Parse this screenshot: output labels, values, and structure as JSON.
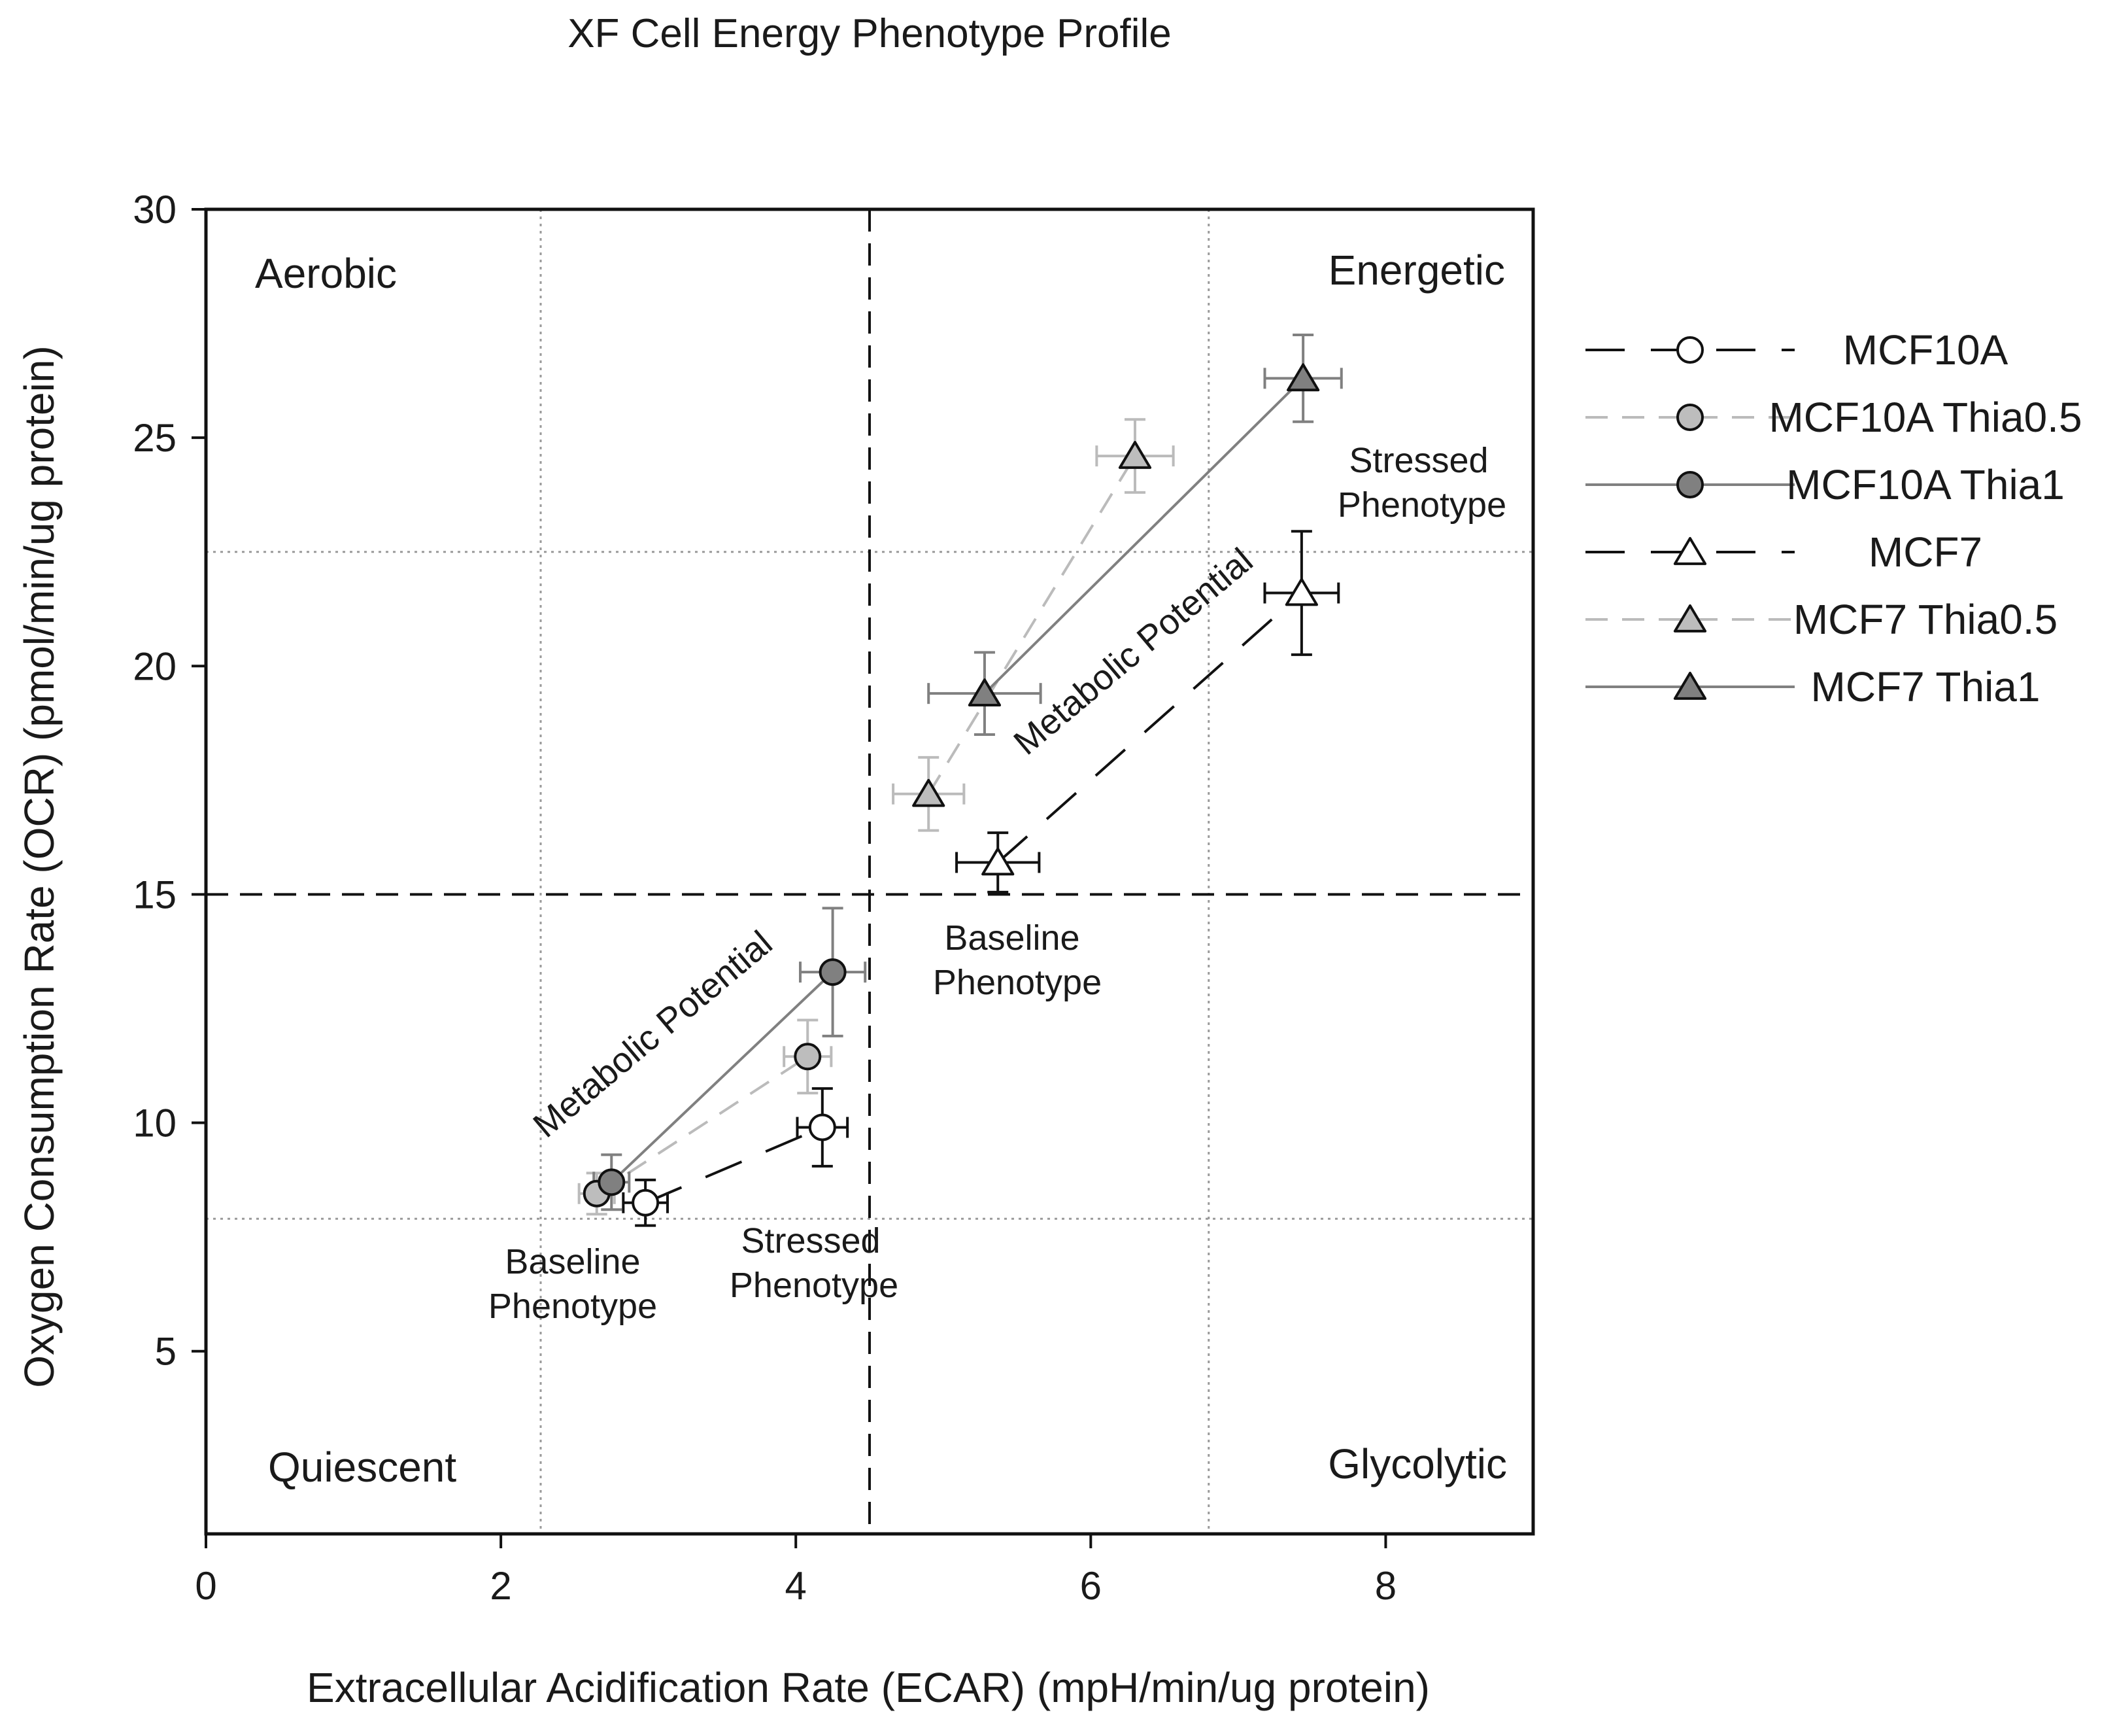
{
  "chart_data": {
    "type": "scatter",
    "title": "XF Cell Energy Phenotype Profile",
    "xlabel": "Extracellular Acidification Rate (ECAR) (mpH/min/ug protein)",
    "ylabel": "Oxygen Consumption Rate (OCR) (pmol/min/ug protein)",
    "xlim": [
      0,
      9
    ],
    "ylim": [
      1,
      30
    ],
    "xticks": [
      0,
      2,
      4,
      6,
      8
    ],
    "yticks": [
      5,
      10,
      15,
      20,
      25,
      30
    ],
    "divider_lines": {
      "dashed_x": 4.5,
      "dashed_y": 15,
      "dotted_x": [
        2.27,
        6.8
      ],
      "dotted_y": [
        7.9,
        22.5
      ]
    },
    "quadrant_labels": {
      "top_left": "Aerobic",
      "top_right": "Energetic",
      "bottom_left": "Quiescent",
      "bottom_right": "Glycolytic"
    },
    "annotations": {
      "mcf10a_baseline_l1": "Baseline",
      "mcf10a_baseline_l2": "Phenotype",
      "mcf10a_stressed_l1": "Stressed",
      "mcf10a_stressed_l2": "Phenotype",
      "mcf10a_potential": "Metabolic Potential",
      "mcf7_baseline_l1": "Baseline",
      "mcf7_baseline_l2": "Phenotype",
      "mcf7_stressed_l1": "Stressed",
      "mcf7_stressed_l2": "Phenotype",
      "mcf7_potential": "Metabolic Potential"
    },
    "series": [
      {
        "name": "MCF10A",
        "marker": "circle",
        "line": "longdash",
        "line_color": "#111111",
        "fill": "#ffffff",
        "err_color": "#111111",
        "points": [
          {
            "x": 2.98,
            "y": 8.25,
            "xerr": 0.15,
            "yerr": 0.5
          },
          {
            "x": 4.18,
            "y": 9.9,
            "xerr": 0.17,
            "yerr": 0.85
          }
        ]
      },
      {
        "name": "MCF10A Thia0.5",
        "marker": "circle",
        "line": "dash",
        "line_color": "#bbbbbb",
        "fill": "#bdbdbd",
        "err_color": "#bbbbbb",
        "points": [
          {
            "x": 2.65,
            "y": 8.45,
            "xerr": 0.12,
            "yerr": 0.45
          },
          {
            "x": 4.08,
            "y": 11.45,
            "xerr": 0.16,
            "yerr": 0.8
          }
        ]
      },
      {
        "name": "MCF10A Thia1",
        "marker": "circle",
        "line": "solid",
        "line_color": "#808080",
        "fill": "#808080",
        "err_color": "#808080",
        "points": [
          {
            "x": 2.75,
            "y": 8.7,
            "xerr": 0.12,
            "yerr": 0.6
          },
          {
            "x": 4.25,
            "y": 13.3,
            "xerr": 0.22,
            "yerr": 1.4
          }
        ]
      },
      {
        "name": "MCF7",
        "marker": "triangle",
        "line": "longdash",
        "line_color": "#111111",
        "fill": "#ffffff",
        "err_color": "#111111",
        "points": [
          {
            "x": 5.37,
            "y": 15.7,
            "xerr": 0.28,
            "yerr": 0.65
          },
          {
            "x": 7.43,
            "y": 21.6,
            "xerr": 0.25,
            "yerr": 1.35
          }
        ]
      },
      {
        "name": "MCF7 Thia0.5",
        "marker": "triangle",
        "line": "dash",
        "line_color": "#bbbbbb",
        "fill": "#bdbdbd",
        "err_color": "#bbbbbb",
        "points": [
          {
            "x": 4.9,
            "y": 17.2,
            "xerr": 0.24,
            "yerr": 0.8
          },
          {
            "x": 6.3,
            "y": 24.6,
            "xerr": 0.26,
            "yerr": 0.8
          }
        ]
      },
      {
        "name": "MCF7 Thia1",
        "marker": "triangle",
        "line": "solid",
        "line_color": "#808080",
        "fill": "#808080",
        "err_color": "#808080",
        "points": [
          {
            "x": 5.28,
            "y": 19.4,
            "xerr": 0.38,
            "yerr": 0.9
          },
          {
            "x": 7.44,
            "y": 26.3,
            "xerr": 0.26,
            "yerr": 0.95
          }
        ]
      }
    ],
    "legend_position": "right"
  }
}
